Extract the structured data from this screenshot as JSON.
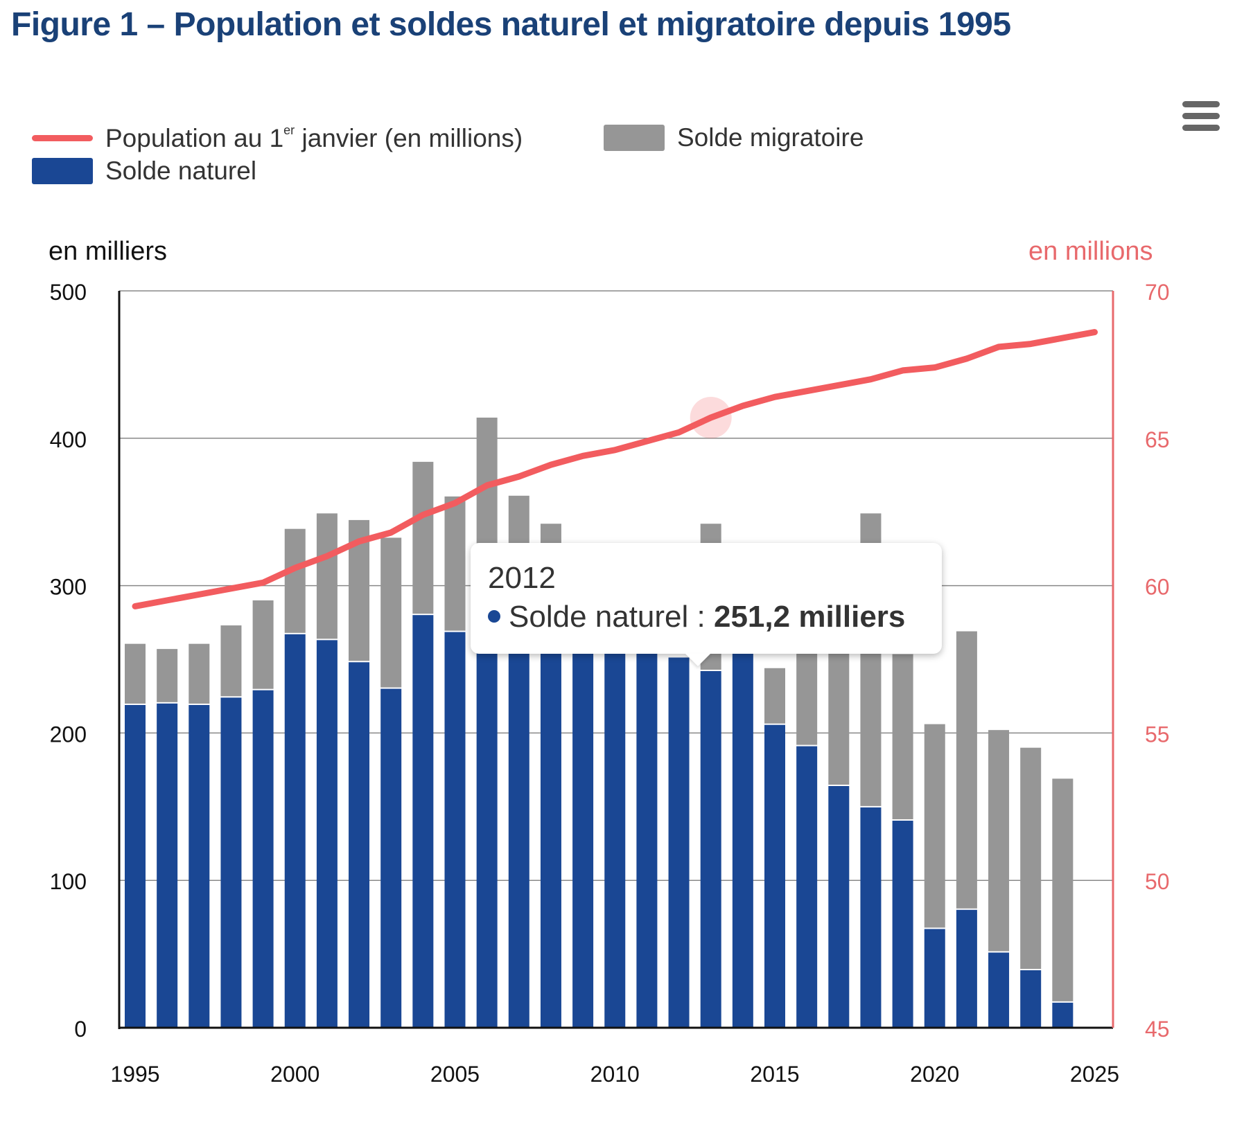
{
  "title": "Figure 1 – Population et soldes naturel et migratoire depuis 1995",
  "menu_icon": "hamburger-menu-icon",
  "legend": {
    "population_label_pre": "Population au 1",
    "population_label_sup": "er",
    "population_label_post": " janvier (en millions)",
    "migratoire_label": "Solde migratoire",
    "naturel_label": "Solde naturel"
  },
  "colors": {
    "naturel": "#1a4794",
    "migratoire": "#969696",
    "population": "#f25c5f",
    "right_axis": "#e8696c",
    "title": "#1a4177"
  },
  "tooltip": {
    "year": "2012",
    "series": "Solde naturel",
    "separator": " : ",
    "value": "251,2 milliers"
  },
  "chart_data": {
    "type": "bar",
    "stacked": true,
    "title": "Figure 1 – Population et soldes naturel et migratoire depuis 1995",
    "left_axis_label": "en milliers",
    "right_axis_label": "en millions",
    "left_ylim": [
      0,
      500
    ],
    "left_ticks": [
      "0",
      "100",
      "200",
      "300",
      "400",
      "500"
    ],
    "right_ylim": [
      45,
      70
    ],
    "right_ticks": [
      "45",
      "50",
      "55",
      "60",
      "65",
      "70"
    ],
    "x_ticks": [
      "1995",
      "2000",
      "2005",
      "2010",
      "2015",
      "2020",
      "2025"
    ],
    "grid": true,
    "legend_position": "top-left",
    "categories": [
      1995,
      1996,
      1997,
      1998,
      1999,
      2000,
      2001,
      2002,
      2003,
      2004,
      2005,
      2006,
      2007,
      2008,
      2009,
      2010,
      2011,
      2012,
      2013,
      2014,
      2015,
      2016,
      2017,
      2018,
      2019,
      2020,
      2021,
      2022,
      2023,
      2024
    ],
    "series": [
      {
        "name": "Solde naturel",
        "type": "bar",
        "axis": "left",
        "values": [
          219,
          220,
          219,
          224,
          229,
          267,
          263,
          248,
          230,
          280,
          268.5,
          290,
          275,
          278,
          270,
          275,
          262,
          251.2,
          242,
          262,
          205.5,
          191,
          164,
          149.5,
          140.5,
          67,
          80,
          51,
          39,
          17
        ]
      },
      {
        "name": "Solde migratoire",
        "type": "bar",
        "axis": "left",
        "values": [
          41.5,
          37,
          41.5,
          49,
          61,
          71.5,
          86,
          96.5,
          102.5,
          104,
          92,
          124,
          86,
          64,
          35,
          30,
          40,
          0,
          100,
          38,
          38.5,
          68,
          90,
          199.5,
          113,
          139,
          189,
          151,
          151,
          152
        ]
      },
      {
        "name": "Population au 1er janvier (en millions)",
        "type": "line",
        "axis": "right",
        "x": [
          1995,
          1996,
          1997,
          1998,
          1999,
          2000,
          2001,
          2002,
          2003,
          2004,
          2005,
          2006,
          2007,
          2008,
          2009,
          2010,
          2011,
          2012,
          2013,
          2014,
          2015,
          2016,
          2017,
          2018,
          2019,
          2020,
          2021,
          2022,
          2023,
          2024,
          2025
        ],
        "values": [
          59.3,
          59.5,
          59.7,
          59.9,
          60.1,
          60.6,
          61.0,
          61.5,
          61.8,
          62.4,
          62.8,
          63.4,
          63.7,
          64.1,
          64.4,
          64.6,
          64.9,
          65.2,
          65.7,
          66.1,
          66.4,
          66.6,
          66.8,
          67.0,
          67.3,
          67.4,
          67.7,
          68.1,
          68.2,
          68.4,
          68.6
        ]
      }
    ],
    "highlighted_point": {
      "series": "Population au 1er janvier (en millions)",
      "x": 2013
    }
  }
}
